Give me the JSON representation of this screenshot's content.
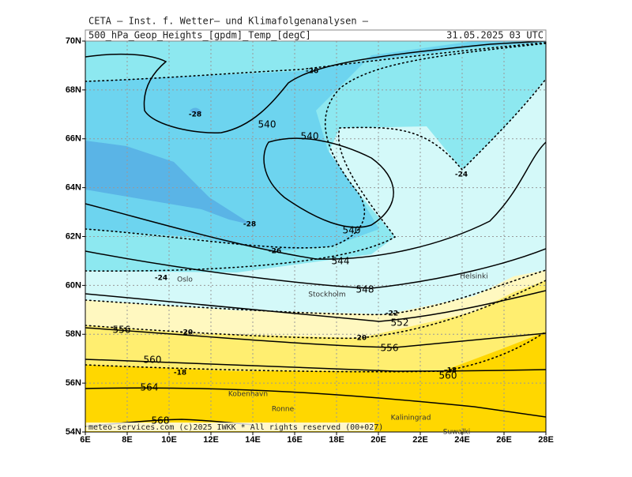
{
  "header": {
    "institute": "CETA — Inst. f. Wetter— und Klimafolgenanalysen —",
    "field": "500_hPa_Geop_Heights_[gpdm]_Temp_[degC]",
    "valid_time": "31.05.2025 03 UTC"
  },
  "axes": {
    "lon_labels": [
      "6E",
      "8E",
      "10E",
      "12E",
      "14E",
      "16E",
      "18E",
      "20E",
      "22E",
      "24E",
      "26E",
      "28E"
    ],
    "lat_labels": [
      "54N",
      "56N",
      "58N",
      "60N",
      "62N",
      "64N",
      "66N",
      "68N",
      "70N"
    ]
  },
  "geopotential_labels": [
    "540",
    "540",
    "540",
    "544",
    "548",
    "552",
    "556",
    "556",
    "560",
    "560",
    "564",
    "568"
  ],
  "temperature_labels": [
    "-26",
    "-28",
    "-28",
    "-26",
    "-24",
    "-24",
    "-22",
    "-20",
    "-20",
    "-18",
    "-18"
  ],
  "places": [
    "Oslo",
    "Stockholm",
    "Helsinki",
    "Kobenhavn",
    "Ronne",
    "Kaliningrad",
    "Suwalki"
  ],
  "footer": "meteo-services.com (c)2025 IWKK * All rights reserved (00+027)"
}
